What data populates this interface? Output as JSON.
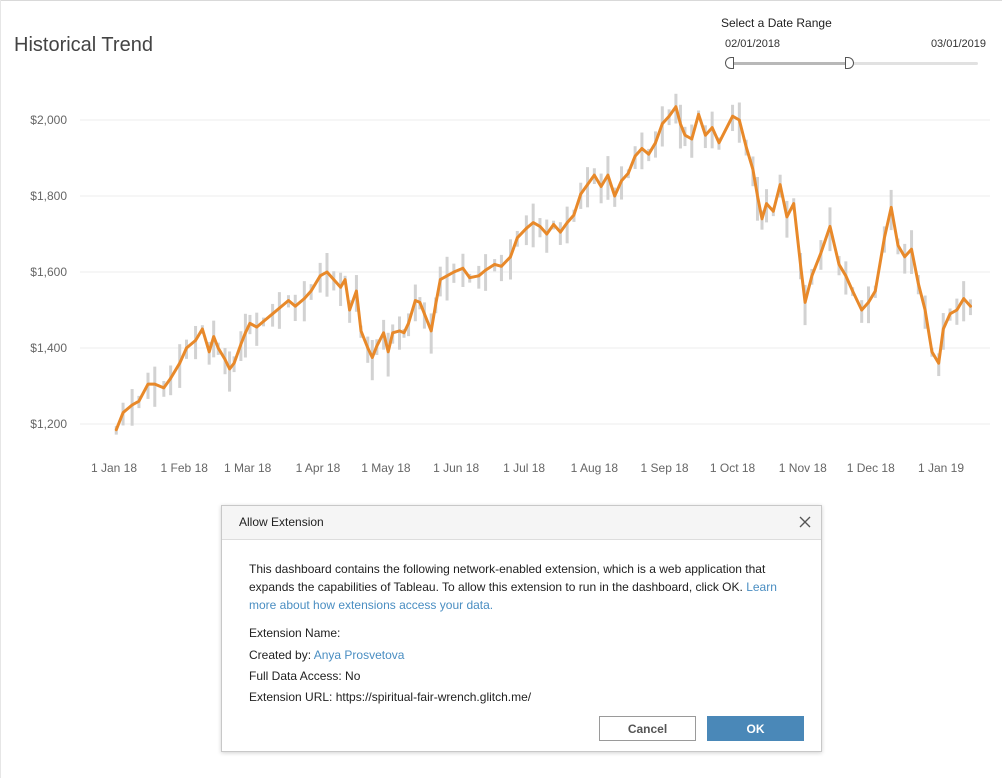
{
  "dashboard": {
    "title": "Historical Trend"
  },
  "date_range": {
    "label": "Select a Date Range",
    "start": "02/01/2018",
    "end": "03/01/2019",
    "selected_fraction_start": 0.0,
    "selected_fraction_end": 0.48
  },
  "colors": {
    "line": "#e8892a",
    "band": "#d2d2d2",
    "grid": "#ececec",
    "ok_button": "#4a88b8",
    "link": "#4a8ec2"
  },
  "chart_data": {
    "type": "line",
    "title": "Historical Trend",
    "xlabel": "",
    "ylabel": "",
    "ylim": [
      1160,
      2060
    ],
    "y_ticks": [
      1200,
      1400,
      1600,
      1800,
      2000
    ],
    "y_tick_labels": [
      "$1,200",
      "$1,400",
      "$1,600",
      "$1,800",
      "$2,000"
    ],
    "x_tick_dates": [
      "2018-01-01",
      "2018-02-01",
      "2018-03-01",
      "2018-04-01",
      "2018-05-01",
      "2018-06-01",
      "2018-07-01",
      "2018-08-01",
      "2018-09-01",
      "2018-10-01",
      "2018-11-01",
      "2018-12-01",
      "2019-01-01"
    ],
    "x_tick_labels": [
      "1 Jan 18",
      "1 Feb 18",
      "1 Mar 18",
      "1 Apr 18",
      "1 May 18",
      "1 Jun 18",
      "1 Jul 18",
      "1 Aug 18",
      "1 Sep 18",
      "1 Oct 18",
      "1 Nov 18",
      "1 Dec 18",
      "1 Jan 19"
    ],
    "grid": true,
    "series": [
      {
        "values": [
          [
            "2018-01-02",
            1185
          ],
          [
            "2018-01-05",
            1230
          ],
          [
            "2018-01-09",
            1250
          ],
          [
            "2018-01-12",
            1260
          ],
          [
            "2018-01-16",
            1305
          ],
          [
            "2018-01-19",
            1305
          ],
          [
            "2018-01-23",
            1295
          ],
          [
            "2018-01-26",
            1320
          ],
          [
            "2018-01-30",
            1360
          ],
          [
            "2018-02-02",
            1400
          ],
          [
            "2018-02-06",
            1420
          ],
          [
            "2018-02-09",
            1450
          ],
          [
            "2018-02-12",
            1390
          ],
          [
            "2018-02-14",
            1430
          ],
          [
            "2018-02-16",
            1400
          ],
          [
            "2018-02-19",
            1370
          ],
          [
            "2018-02-21",
            1345
          ],
          [
            "2018-02-23",
            1360
          ],
          [
            "2018-02-26",
            1410
          ],
          [
            "2018-02-28",
            1440
          ],
          [
            "2018-03-02",
            1465
          ],
          [
            "2018-03-05",
            1455
          ],
          [
            "2018-03-08",
            1470
          ],
          [
            "2018-03-12",
            1490
          ],
          [
            "2018-03-15",
            1505
          ],
          [
            "2018-03-19",
            1525
          ],
          [
            "2018-03-22",
            1510
          ],
          [
            "2018-03-26",
            1530
          ],
          [
            "2018-03-29",
            1550
          ],
          [
            "2018-04-02",
            1590
          ],
          [
            "2018-04-05",
            1600
          ],
          [
            "2018-04-08",
            1580
          ],
          [
            "2018-04-11",
            1560
          ],
          [
            "2018-04-13",
            1580
          ],
          [
            "2018-04-15",
            1500
          ],
          [
            "2018-04-18",
            1550
          ],
          [
            "2018-04-20",
            1445
          ],
          [
            "2018-04-23",
            1400
          ],
          [
            "2018-04-25",
            1375
          ],
          [
            "2018-04-27",
            1405
          ],
          [
            "2018-04-30",
            1440
          ],
          [
            "2018-05-02",
            1390
          ],
          [
            "2018-05-04",
            1440
          ],
          [
            "2018-05-07",
            1445
          ],
          [
            "2018-05-09",
            1440
          ],
          [
            "2018-05-11",
            1465
          ],
          [
            "2018-05-14",
            1525
          ],
          [
            "2018-05-16",
            1520
          ],
          [
            "2018-05-18",
            1490
          ],
          [
            "2018-05-21",
            1445
          ],
          [
            "2018-05-23",
            1515
          ],
          [
            "2018-05-25",
            1580
          ],
          [
            "2018-05-28",
            1590
          ],
          [
            "2018-05-31",
            1600
          ],
          [
            "2018-06-04",
            1610
          ],
          [
            "2018-06-07",
            1585
          ],
          [
            "2018-06-11",
            1590
          ],
          [
            "2018-06-14",
            1605
          ],
          [
            "2018-06-18",
            1620
          ],
          [
            "2018-06-21",
            1615
          ],
          [
            "2018-06-25",
            1640
          ],
          [
            "2018-06-28",
            1690
          ],
          [
            "2018-07-02",
            1715
          ],
          [
            "2018-07-05",
            1730
          ],
          [
            "2018-07-08",
            1720
          ],
          [
            "2018-07-11",
            1700
          ],
          [
            "2018-07-14",
            1725
          ],
          [
            "2018-07-17",
            1705
          ],
          [
            "2018-07-20",
            1730
          ],
          [
            "2018-07-23",
            1750
          ],
          [
            "2018-07-26",
            1805
          ],
          [
            "2018-07-29",
            1830
          ],
          [
            "2018-08-01",
            1855
          ],
          [
            "2018-08-04",
            1825
          ],
          [
            "2018-08-07",
            1855
          ],
          [
            "2018-08-10",
            1800
          ],
          [
            "2018-08-13",
            1840
          ],
          [
            "2018-08-16",
            1860
          ],
          [
            "2018-08-19",
            1905
          ],
          [
            "2018-08-22",
            1925
          ],
          [
            "2018-08-25",
            1910
          ],
          [
            "2018-08-28",
            1940
          ],
          [
            "2018-08-31",
            1990
          ],
          [
            "2018-09-03",
            2010
          ],
          [
            "2018-09-06",
            2035
          ],
          [
            "2018-09-08",
            1990
          ],
          [
            "2018-09-10",
            1960
          ],
          [
            "2018-09-13",
            1950
          ],
          [
            "2018-09-16",
            2015
          ],
          [
            "2018-09-19",
            1960
          ],
          [
            "2018-09-22",
            1980
          ],
          [
            "2018-09-25",
            1940
          ],
          [
            "2018-10-01",
            2010
          ],
          [
            "2018-10-04",
            2000
          ],
          [
            "2018-10-07",
            1930
          ],
          [
            "2018-10-10",
            1870
          ],
          [
            "2018-10-12",
            1800
          ],
          [
            "2018-10-14",
            1740
          ],
          [
            "2018-10-16",
            1780
          ],
          [
            "2018-10-19",
            1760
          ],
          [
            "2018-10-22",
            1830
          ],
          [
            "2018-10-25",
            1745
          ],
          [
            "2018-10-28",
            1780
          ],
          [
            "2018-10-31",
            1620
          ],
          [
            "2018-11-02",
            1520
          ],
          [
            "2018-11-05",
            1590
          ],
          [
            "2018-11-09",
            1650
          ],
          [
            "2018-11-13",
            1720
          ],
          [
            "2018-11-17",
            1620
          ],
          [
            "2018-11-20",
            1590
          ],
          [
            "2018-11-23",
            1550
          ],
          [
            "2018-11-27",
            1500
          ],
          [
            "2018-11-30",
            1520
          ],
          [
            "2018-12-03",
            1550
          ],
          [
            "2018-12-07",
            1690
          ],
          [
            "2018-12-10",
            1770
          ],
          [
            "2018-12-13",
            1670
          ],
          [
            "2018-12-16",
            1640
          ],
          [
            "2018-12-19",
            1660
          ],
          [
            "2018-12-22",
            1570
          ],
          [
            "2018-12-25",
            1500
          ],
          [
            "2018-12-28",
            1390
          ],
          [
            "2018-12-31",
            1360
          ],
          [
            "2019-01-02",
            1450
          ],
          [
            "2019-01-05",
            1490
          ],
          [
            "2019-01-08",
            1500
          ],
          [
            "2019-01-11",
            1530
          ],
          [
            "2019-01-14",
            1510
          ]
        ]
      }
    ]
  },
  "dialog": {
    "title": "Allow Extension",
    "body_text": "This dashboard contains the following network-enabled extension, which is a web application that expands the capabilities of Tableau. To allow this extension to run in the dashboard, click OK.",
    "learn_more_link": "Learn more about how extensions access your data.",
    "extension_name_label": "Extension Name:",
    "created_by_label": "Created by:",
    "created_by_value": "Anya Prosvetova",
    "full_data_access_label": "Full Data Access:",
    "full_data_access_value": "No",
    "extension_url_label": "Extension URL:",
    "extension_url_value": "https://spiritual-fair-wrench.glitch.me/",
    "cancel_label": "Cancel",
    "ok_label": "OK"
  }
}
